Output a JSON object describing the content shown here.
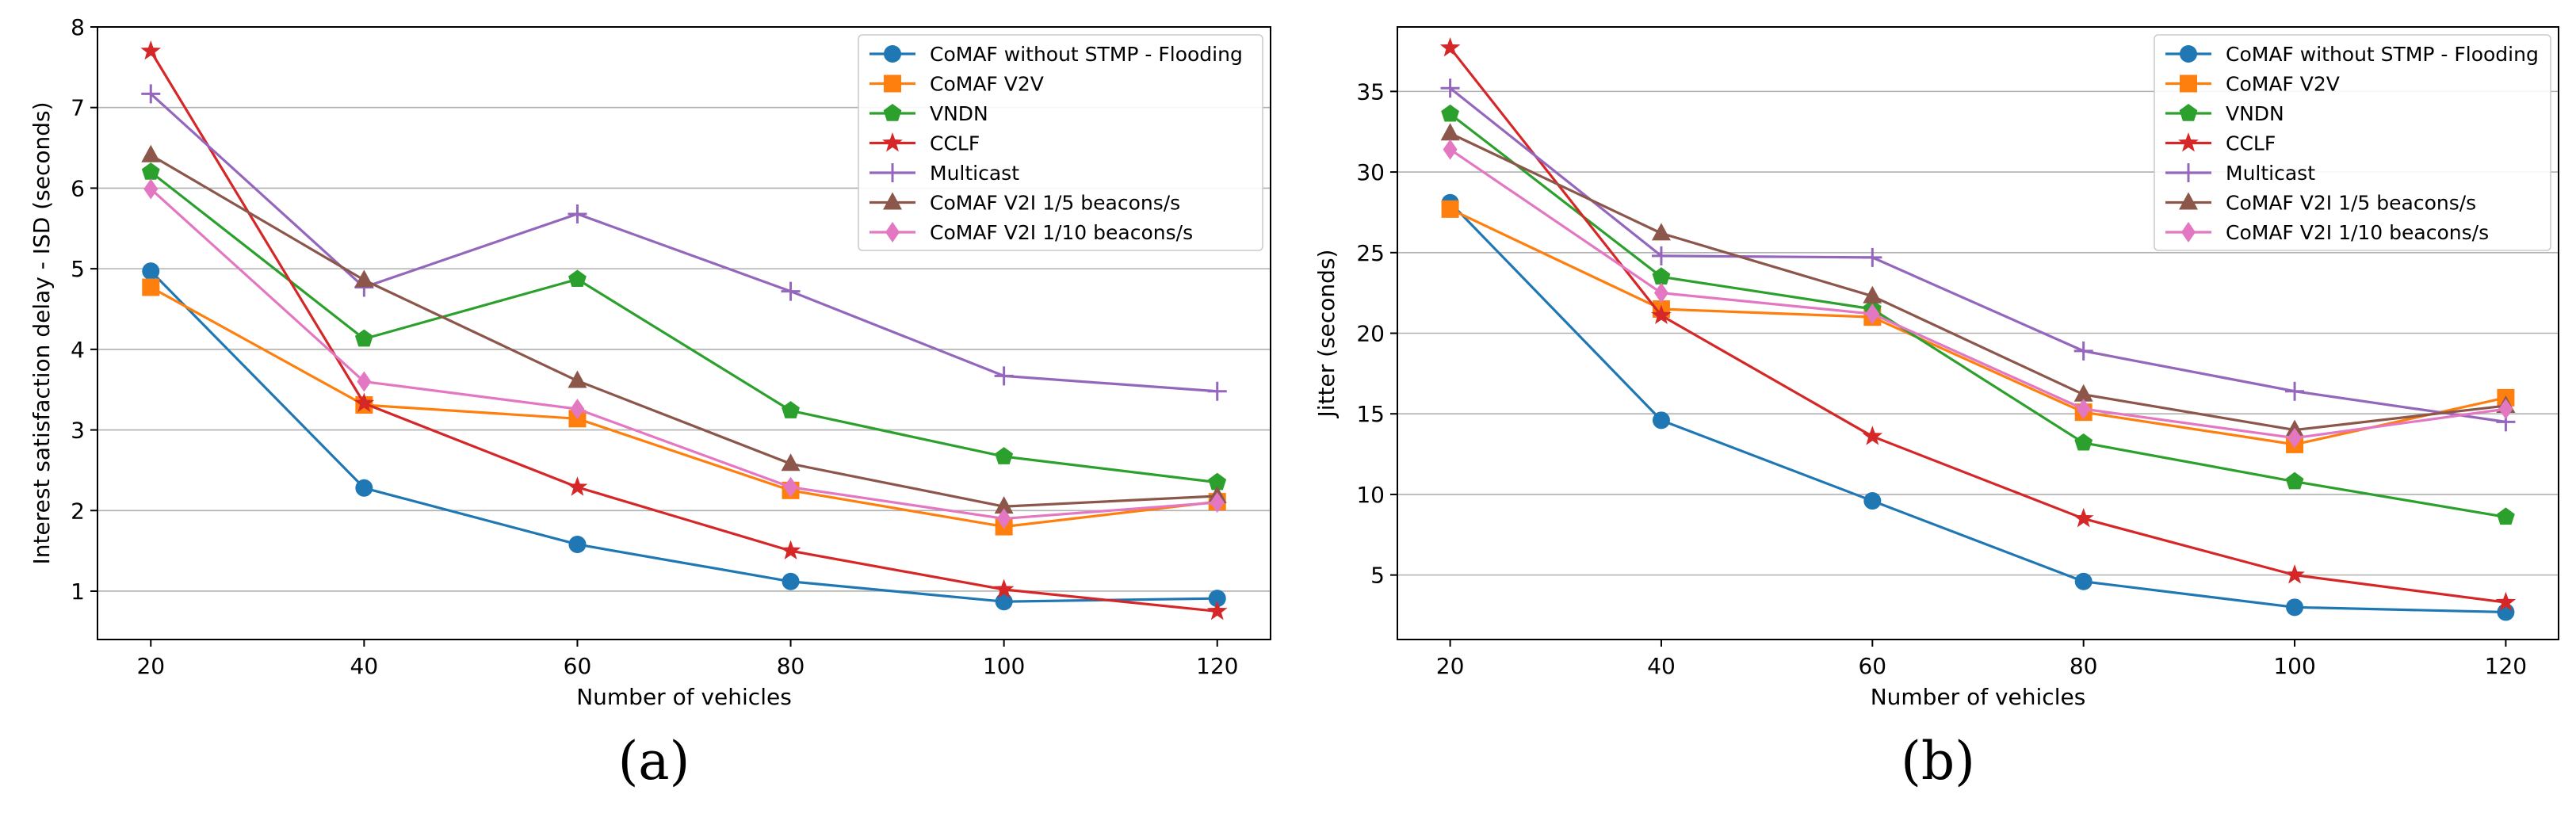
{
  "panel_labels": [
    "(a)",
    "(b)"
  ],
  "chart_data": [
    {
      "type": "line",
      "title": "",
      "xlabel": "Number of vehicles",
      "ylabel": "Interest satisfaction delay - ISD  (seconds)",
      "x": [
        20,
        40,
        60,
        80,
        100,
        120
      ],
      "xticks": [
        20,
        40,
        60,
        80,
        100,
        120
      ],
      "yticks": [
        1,
        2,
        3,
        4,
        5,
        6,
        7,
        8
      ],
      "xlim": [
        15,
        125
      ],
      "ylim": [
        0.4,
        8.0
      ],
      "grid": "horizontal",
      "legend": "top-right",
      "series": [
        {
          "name": "CoMAF without STMP - Flooding",
          "color": "#1f77b4",
          "marker": "circle",
          "values": [
            4.97,
            2.28,
            1.58,
            1.12,
            0.87,
            0.91
          ]
        },
        {
          "name": "CoMAF V2V",
          "color": "#ff7f0e",
          "marker": "square",
          "values": [
            4.77,
            3.31,
            3.14,
            2.25,
            1.8,
            2.11
          ]
        },
        {
          "name": "VNDN",
          "color": "#2ca02c",
          "marker": "pentagon",
          "values": [
            6.2,
            4.13,
            4.87,
            3.24,
            2.67,
            2.35
          ]
        },
        {
          "name": "CCLF",
          "color": "#d62728",
          "marker": "star",
          "values": [
            7.7,
            3.33,
            2.29,
            1.5,
            1.02,
            0.75
          ]
        },
        {
          "name": "Multicast",
          "color": "#9467bd",
          "marker": "plus",
          "values": [
            7.17,
            4.77,
            5.68,
            4.72,
            3.67,
            3.48
          ]
        },
        {
          "name": "CoMAF V2I 1/5 beacons/s",
          "color": "#8c564b",
          "marker": "triangle",
          "values": [
            6.41,
            4.86,
            3.61,
            2.58,
            2.05,
            2.18
          ]
        },
        {
          "name": "CoMAF V2I 1/10 beacons/s",
          "color": "#e377c2",
          "marker": "diamond",
          "values": [
            5.99,
            3.6,
            3.26,
            2.29,
            1.9,
            2.1
          ]
        }
      ]
    },
    {
      "type": "line",
      "title": "",
      "xlabel": "Number of vehicles",
      "ylabel": "Jitter (seconds)",
      "x": [
        20,
        40,
        60,
        80,
        100,
        120
      ],
      "xticks": [
        20,
        40,
        60,
        80,
        100,
        120
      ],
      "yticks": [
        5,
        10,
        15,
        20,
        25,
        30,
        35
      ],
      "xlim": [
        15,
        125
      ],
      "ylim": [
        1.0,
        39.0
      ],
      "grid": "horizontal",
      "legend": "top-right",
      "series": [
        {
          "name": "CoMAF without STMP - Flooding",
          "color": "#1f77b4",
          "marker": "circle",
          "values": [
            28.1,
            14.6,
            9.6,
            4.6,
            3.0,
            2.7
          ]
        },
        {
          "name": "CoMAF V2V",
          "color": "#ff7f0e",
          "marker": "square",
          "values": [
            27.7,
            21.5,
            21.0,
            15.1,
            13.1,
            16.0
          ]
        },
        {
          "name": "VNDN",
          "color": "#2ca02c",
          "marker": "pentagon",
          "values": [
            33.6,
            23.5,
            21.5,
            13.2,
            10.8,
            8.6
          ]
        },
        {
          "name": "CCLF",
          "color": "#d62728",
          "marker": "star",
          "values": [
            37.7,
            21.1,
            13.6,
            8.5,
            5.0,
            3.3
          ]
        },
        {
          "name": "Multicast",
          "color": "#9467bd",
          "marker": "plus",
          "values": [
            35.2,
            24.8,
            24.7,
            18.9,
            16.4,
            14.5
          ]
        },
        {
          "name": "CoMAF V2I 1/5 beacons/s",
          "color": "#8c564b",
          "marker": "triangle",
          "values": [
            32.4,
            26.2,
            22.3,
            16.2,
            14.0,
            15.5
          ]
        },
        {
          "name": "CoMAF V2I 1/10 beacons/s",
          "color": "#e377c2",
          "marker": "diamond",
          "values": [
            31.4,
            22.5,
            21.2,
            15.3,
            13.5,
            15.3
          ]
        }
      ]
    }
  ]
}
